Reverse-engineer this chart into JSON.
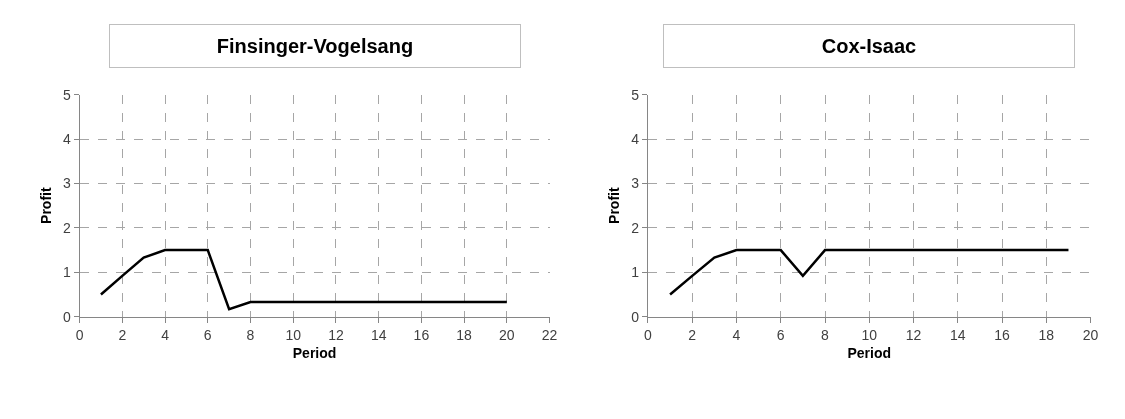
{
  "chart_data": [
    {
      "type": "line",
      "title": "Finsinger-Vogelsang",
      "xlabel": "Period",
      "ylabel": "Profit",
      "x": [
        1,
        2,
        3,
        4,
        5,
        6,
        7,
        8,
        9,
        10,
        11,
        12,
        13,
        14,
        15,
        16,
        17,
        18,
        19,
        20
      ],
      "series": [
        {
          "color": "#000000",
          "values": [
            0.5,
            0.92,
            1.33,
            1.5,
            1.5,
            1.5,
            0.17,
            0.33,
            0.33,
            0.33,
            0.33,
            0.33,
            0.33,
            0.33,
            0.33,
            0.33,
            0.33,
            0.33,
            0.33,
            0.33
          ]
        }
      ],
      "xlim": [
        0,
        22
      ],
      "xticks": [
        0,
        2,
        4,
        6,
        8,
        10,
        12,
        14,
        16,
        18,
        20,
        22
      ],
      "ylim": [
        0,
        5
      ],
      "yticks": [
        0,
        1,
        2,
        3,
        4,
        5
      ],
      "grid": true,
      "marker": "none",
      "line_style": "solid"
    },
    {
      "type": "line",
      "title": "Cox-Isaac",
      "xlabel": "Period",
      "ylabel": "Profit",
      "x": [
        1,
        2,
        3,
        4,
        5,
        6,
        7,
        8,
        9,
        10,
        11,
        12,
        13,
        14,
        15,
        16,
        17,
        18,
        19
      ],
      "series": [
        {
          "color": "#000000",
          "values": [
            0.5,
            0.92,
            1.33,
            1.5,
            1.5,
            1.5,
            0.92,
            1.5,
            1.5,
            1.5,
            1.5,
            1.5,
            1.5,
            1.5,
            1.5,
            1.5,
            1.5,
            1.5,
            1.5
          ]
        }
      ],
      "xlim": [
        0,
        20
      ],
      "xticks": [
        0,
        2,
        4,
        6,
        8,
        10,
        12,
        14,
        16,
        18,
        20
      ],
      "ylim": [
        0,
        5
      ],
      "yticks": [
        0,
        1,
        2,
        3,
        4,
        5
      ],
      "grid": true,
      "marker": "none",
      "line_style": "solid"
    }
  ]
}
